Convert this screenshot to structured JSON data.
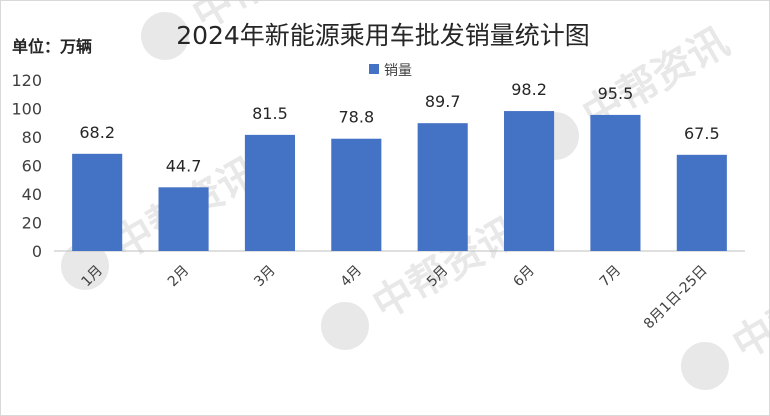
{
  "chart_data": {
    "type": "bar",
    "title": "2024年新能源乘用车批发销量统计图",
    "unit_label": "单位：万辆",
    "categories": [
      "1月",
      "2月",
      "3月",
      "4月",
      "5月",
      "6月",
      "7月",
      "8月1日-25日"
    ],
    "series": [
      {
        "name": "销量",
        "values": [
          68.2,
          44.7,
          81.5,
          78.8,
          89.7,
          98.2,
          95.5,
          67.5
        ]
      }
    ],
    "data_labels": [
      "68.2",
      "44.7",
      "81.5",
      "78.8",
      "89.7",
      "98.2",
      "95.5",
      "67.5"
    ],
    "yticks": [
      "0",
      "20",
      "40",
      "60",
      "80",
      "100",
      "120"
    ],
    "ylim": [
      0,
      120
    ],
    "grid": false,
    "legend_position": "top-center",
    "colors": {
      "bar": "#4472c4",
      "text": "#262626",
      "axis": "#bfbfbf"
    }
  },
  "watermark": {
    "text": "中帮资讯",
    "icon": "p-logo-icon"
  }
}
